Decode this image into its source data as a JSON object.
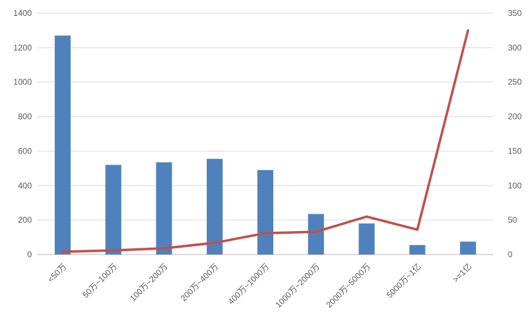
{
  "chart_data": {
    "type": "combo",
    "title": "",
    "legend": "none",
    "grid": true,
    "categories": [
      "<50万",
      "50万~100万",
      "100万~200万",
      "200万~400万",
      "400万~1000万",
      "1000万~2000万",
      "2000万~5000万",
      "5000万~1亿",
      ">=1亿"
    ],
    "series": [
      {
        "type": "bar",
        "axis": "left",
        "color": "#4F81BD",
        "values": [
          1270,
          520,
          535,
          555,
          490,
          235,
          180,
          55,
          75
        ]
      },
      {
        "type": "line",
        "axis": "right",
        "color": "#C0504D",
        "values": [
          4,
          6,
          9,
          17,
          31,
          33,
          55,
          36,
          325
        ]
      }
    ],
    "left_axis": {
      "min": 0,
      "max": 1400,
      "step": 200,
      "tick_labels": [
        "0",
        "200",
        "400",
        "600",
        "800",
        "1000",
        "1200",
        "1400"
      ]
    },
    "right_axis": {
      "min": 0,
      "max": 350,
      "step": 50,
      "tick_labels": [
        "0",
        "50",
        "100",
        "150",
        "200",
        "250",
        "300",
        "350"
      ]
    },
    "style": {
      "gridline_color": "#D9D9D9",
      "axis_line_color": "#C6C6C6",
      "tick_label_color": "#595959",
      "background": "#FFFFFF"
    }
  }
}
